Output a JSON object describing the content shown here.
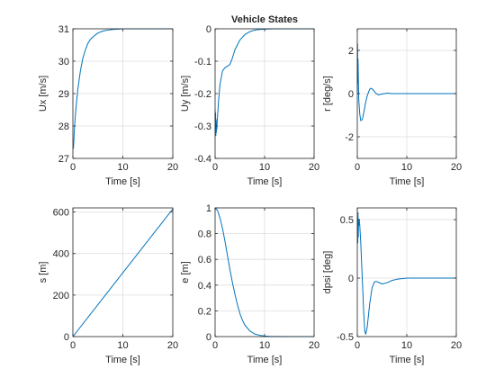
{
  "figure": {
    "title": "Vehicle States"
  },
  "colors": {
    "line": "#0072BD",
    "grid": "#dedede",
    "axis": "#262626",
    "background": "#ffffff"
  },
  "chart_data": [
    {
      "type": "line",
      "xlabel": "Time [s]",
      "ylabel": "Ux [m/s]",
      "xlim": [
        0,
        20
      ],
      "ylim": [
        27,
        31
      ],
      "xticks": [
        0,
        10,
        20
      ],
      "yticks": [
        27,
        28,
        29,
        30,
        31
      ],
      "grid": true,
      "series": [
        {
          "x": [
            0.1,
            0.3,
            0.5,
            0.8,
            1,
            1.5,
            2,
            2.5,
            3,
            3.5,
            4,
            5,
            6,
            7,
            8,
            9,
            10,
            12,
            15,
            20
          ],
          "y": [
            27.3,
            27.9,
            28.35,
            28.85,
            29.15,
            29.7,
            30.1,
            30.35,
            30.55,
            30.67,
            30.75,
            30.87,
            30.93,
            30.96,
            30.98,
            30.99,
            31,
            31,
            31,
            31
          ]
        }
      ]
    },
    {
      "type": "line",
      "xlabel": "Time [s]",
      "ylabel": "Uy [m/s]",
      "xlim": [
        0,
        20
      ],
      "ylim": [
        -0.4,
        0
      ],
      "xticks": [
        0,
        10,
        20
      ],
      "yticks": [
        -0.4,
        -0.3,
        -0.2,
        -0.1,
        0
      ],
      "grid": true,
      "series": [
        {
          "x": [
            0,
            0.05,
            0.1,
            0.15,
            0.2,
            0.25,
            0.3,
            0.35,
            0.4,
            0.5,
            0.7,
            1,
            1.5,
            2,
            2.5,
            3,
            3.5,
            4,
            5,
            6,
            7,
            8,
            9,
            10,
            12,
            15,
            20
          ],
          "y": [
            -0.25,
            -0.32,
            -0.26,
            -0.33,
            -0.28,
            -0.32,
            -0.3,
            -0.31,
            -0.29,
            -0.27,
            -0.22,
            -0.17,
            -0.13,
            -0.12,
            -0.115,
            -0.11,
            -0.09,
            -0.065,
            -0.035,
            -0.018,
            -0.009,
            -0.004,
            -0.002,
            -0.001,
            0,
            0,
            0
          ]
        }
      ]
    },
    {
      "type": "line",
      "xlabel": "Time [s]",
      "ylabel": "r [deg/s]",
      "xlim": [
        0,
        20
      ],
      "ylim": [
        -3,
        3
      ],
      "xticks": [
        0,
        10,
        20
      ],
      "yticks": [
        -2,
        0,
        2
      ],
      "grid": true,
      "series": [
        {
          "x": [
            0,
            0.05,
            0.1,
            0.15,
            0.2,
            0.3,
            0.5,
            0.7,
            1,
            1.3,
            1.6,
            2,
            2.5,
            2.8,
            3.3,
            3.8,
            4.3,
            5,
            6,
            6.5,
            7,
            8,
            10,
            20
          ],
          "y": [
            0,
            2.3,
            0.5,
            1.6,
            0.9,
            -0.3,
            -0.95,
            -1.25,
            -1.2,
            -0.9,
            -0.5,
            -0.1,
            0.2,
            0.25,
            0.15,
            0.0,
            -0.06,
            -0.02,
            0.02,
            0.01,
            0.0,
            0.0,
            0.0,
            0.0
          ]
        }
      ]
    },
    {
      "type": "line",
      "xlabel": "Time [s]",
      "ylabel": "s [m]",
      "xlim": [
        0,
        20
      ],
      "ylim": [
        0,
        620
      ],
      "xticks": [
        0,
        10,
        20
      ],
      "yticks": [
        0,
        200,
        400,
        600
      ],
      "grid": true,
      "series": [
        {
          "x": [
            0,
            20
          ],
          "y": [
            0,
            615
          ]
        }
      ]
    },
    {
      "type": "line",
      "xlabel": "Time [s]",
      "ylabel": "e [m]",
      "xlim": [
        0,
        20
      ],
      "ylim": [
        0,
        1
      ],
      "xticks": [
        0,
        10,
        20
      ],
      "yticks": [
        0,
        0.2,
        0.4,
        0.6,
        0.8,
        1
      ],
      "grid": true,
      "series": [
        {
          "x": [
            0,
            0.5,
            1,
            1.5,
            2,
            2.5,
            3,
            3.5,
            4,
            4.5,
            5,
            5.5,
            6,
            7,
            8,
            9,
            10,
            11,
            12,
            15,
            20
          ],
          "y": [
            1,
            0.98,
            0.92,
            0.84,
            0.74,
            0.63,
            0.52,
            0.42,
            0.33,
            0.25,
            0.18,
            0.13,
            0.09,
            0.045,
            0.02,
            0.01,
            0.004,
            0.002,
            0.001,
            0,
            0
          ]
        }
      ]
    },
    {
      "type": "line",
      "xlabel": "Time [s]",
      "ylabel": "dpsi [deg]",
      "xlim": [
        0,
        20
      ],
      "ylim": [
        -0.5,
        0.6
      ],
      "xticks": [
        0,
        10,
        20
      ],
      "yticks": [
        -0.5,
        0,
        0.5
      ],
      "grid": true,
      "series": [
        {
          "x": [
            0,
            0.1,
            0.15,
            0.2,
            0.25,
            0.3,
            0.4,
            0.5,
            0.7,
            0.9,
            1.1,
            1.3,
            1.5,
            1.7,
            2,
            2.5,
            3,
            3.5,
            4,
            5,
            6,
            7,
            8,
            9,
            10,
            12,
            15,
            20
          ],
          "y": [
            0.5,
            0.3,
            0.56,
            0.35,
            0.5,
            0.45,
            0.5,
            0.45,
            0.3,
            0.1,
            -0.1,
            -0.3,
            -0.45,
            -0.48,
            -0.42,
            -0.22,
            -0.08,
            -0.03,
            -0.03,
            -0.05,
            -0.04,
            -0.02,
            -0.01,
            -0.005,
            0,
            0,
            0,
            0
          ]
        }
      ]
    }
  ]
}
